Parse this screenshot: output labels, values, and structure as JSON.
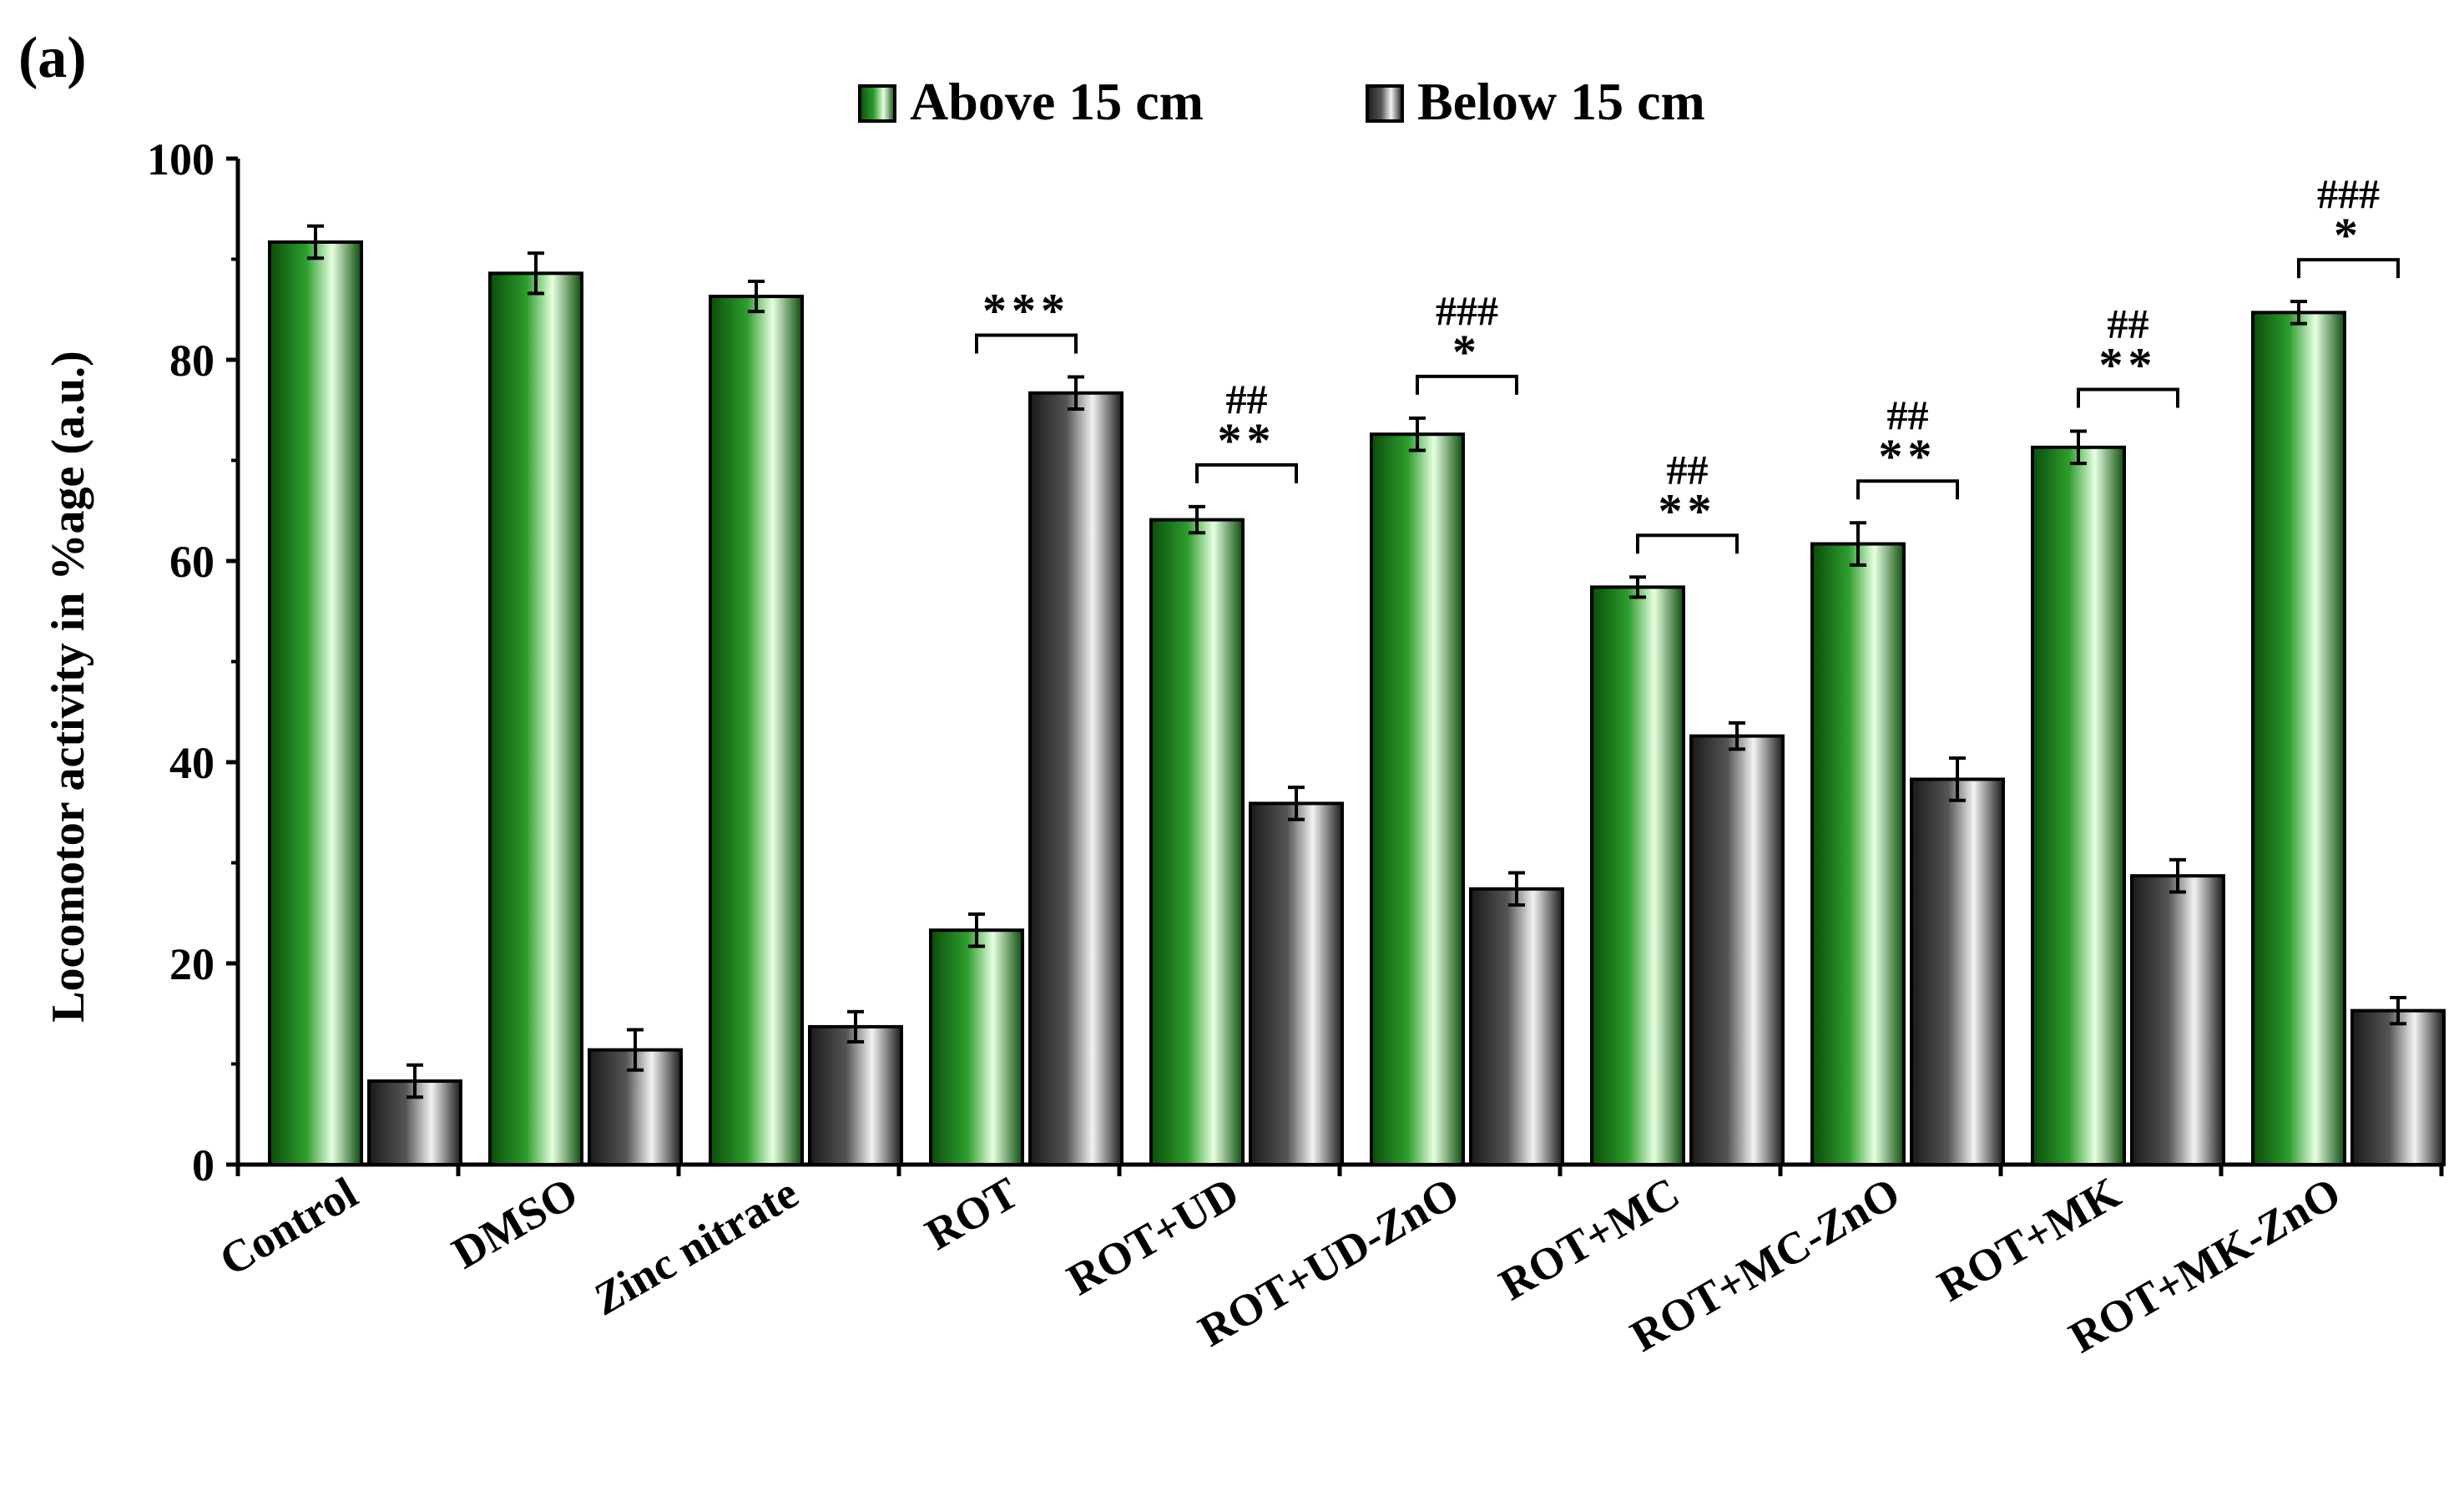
{
  "panel_label": "(a)",
  "colors": {
    "above_dark": "#0a4d0a",
    "above_mid": "#2e9e2e",
    "above_light": "#e6ffe0",
    "below_dark": "#1a1a1a",
    "below_mid": "#555555",
    "below_light": "#f2f2f2"
  },
  "chart_data": {
    "type": "bar",
    "title": "",
    "xlabel": "",
    "ylabel": "Locomotor activity in %age (a.u.)",
    "ylim": [
      0,
      100
    ],
    "yticks": [
      0,
      20,
      40,
      60,
      80,
      100
    ],
    "legend_position": "top-center",
    "grid": false,
    "categories": [
      "Control",
      "DMSO",
      "Zinc nitrate",
      "ROT",
      "ROT+UD",
      "ROT+UD-ZnO",
      "ROT+MC",
      "ROT+MC-ZnO",
      "ROT+MK",
      "ROT+MK-ZnO"
    ],
    "italic_prefix": {
      "2": "Z",
      "5": "Z",
      "7": "Z",
      "9": "Z"
    },
    "series": [
      {
        "name": "Above 15 cm",
        "values": [
          91.7,
          88.6,
          86.3,
          23.3,
          64.1,
          72.6,
          57.4,
          61.7,
          71.3,
          84.7
        ],
        "errors": [
          1.6,
          2.0,
          1.5,
          1.6,
          1.3,
          1.6,
          1.0,
          2.1,
          1.6,
          1.1
        ]
      },
      {
        "name": "Below 15 cm",
        "values": [
          8.3,
          11.4,
          13.7,
          76.7,
          35.9,
          27.4,
          42.6,
          38.3,
          28.7,
          15.3
        ],
        "errors": [
          1.6,
          2.0,
          1.5,
          1.6,
          1.6,
          1.6,
          1.3,
          2.1,
          1.6,
          1.3
        ]
      }
    ],
    "annotations": [
      {
        "category_index": 3,
        "stars": "***",
        "hashes": ""
      },
      {
        "category_index": 4,
        "stars": "**",
        "hashes": "##"
      },
      {
        "category_index": 5,
        "stars": "*",
        "hashes": "###"
      },
      {
        "category_index": 6,
        "stars": "**",
        "hashes": "##"
      },
      {
        "category_index": 7,
        "stars": "**",
        "hashes": "##"
      },
      {
        "category_index": 8,
        "stars": "**",
        "hashes": "##"
      },
      {
        "category_index": 9,
        "stars": "*",
        "hashes": "###"
      }
    ]
  }
}
